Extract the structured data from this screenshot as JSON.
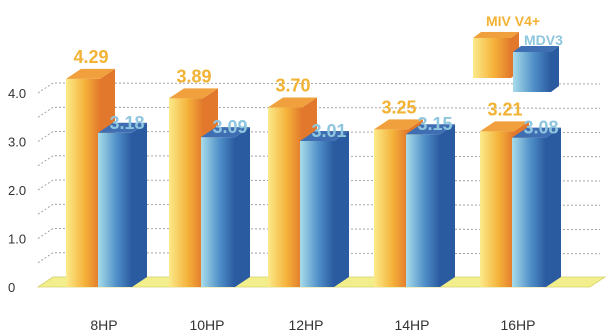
{
  "chart_data": {
    "type": "bar",
    "title": "",
    "xlabel": "",
    "ylabel": "",
    "categories": [
      "8HP",
      "10HP",
      "12HP",
      "14HP",
      "16HP"
    ],
    "series": [
      {
        "name": "MIV V4+",
        "values": [
          4.29,
          3.89,
          3.7,
          3.25,
          3.21
        ],
        "labels": [
          "4.29",
          "3.89",
          "3.70",
          "3.25",
          "3.21"
        ]
      },
      {
        "name": "MDV3",
        "values": [
          3.18,
          3.09,
          3.01,
          3.15,
          3.08
        ],
        "labels": [
          "3.18",
          "3.09",
          "3.01",
          "3.15",
          "3.08"
        ]
      }
    ],
    "yticks": [
      "0",
      "1.0",
      "2.0",
      "3.0",
      "4.0"
    ],
    "ylim": [
      0,
      4.6
    ],
    "grid": true,
    "legend": "top-right"
  },
  "colors": {
    "series_1_light": "#fbea8a",
    "series_1_mid": "#f5b23a",
    "series_1_dark": "#e2782c",
    "series_1_top": "#f0a03c",
    "series_1_label": "#f2b233",
    "series_2_light": "#a8dcea",
    "series_2_mid": "#4f8fc8",
    "series_2_dark": "#2a5aa0",
    "series_2_top": "#3f6fb2",
    "series_2_label": "#8fc6df",
    "grid": "#9a9a9a",
    "floor": "#f2ee8c",
    "axis_text": "#333333"
  }
}
